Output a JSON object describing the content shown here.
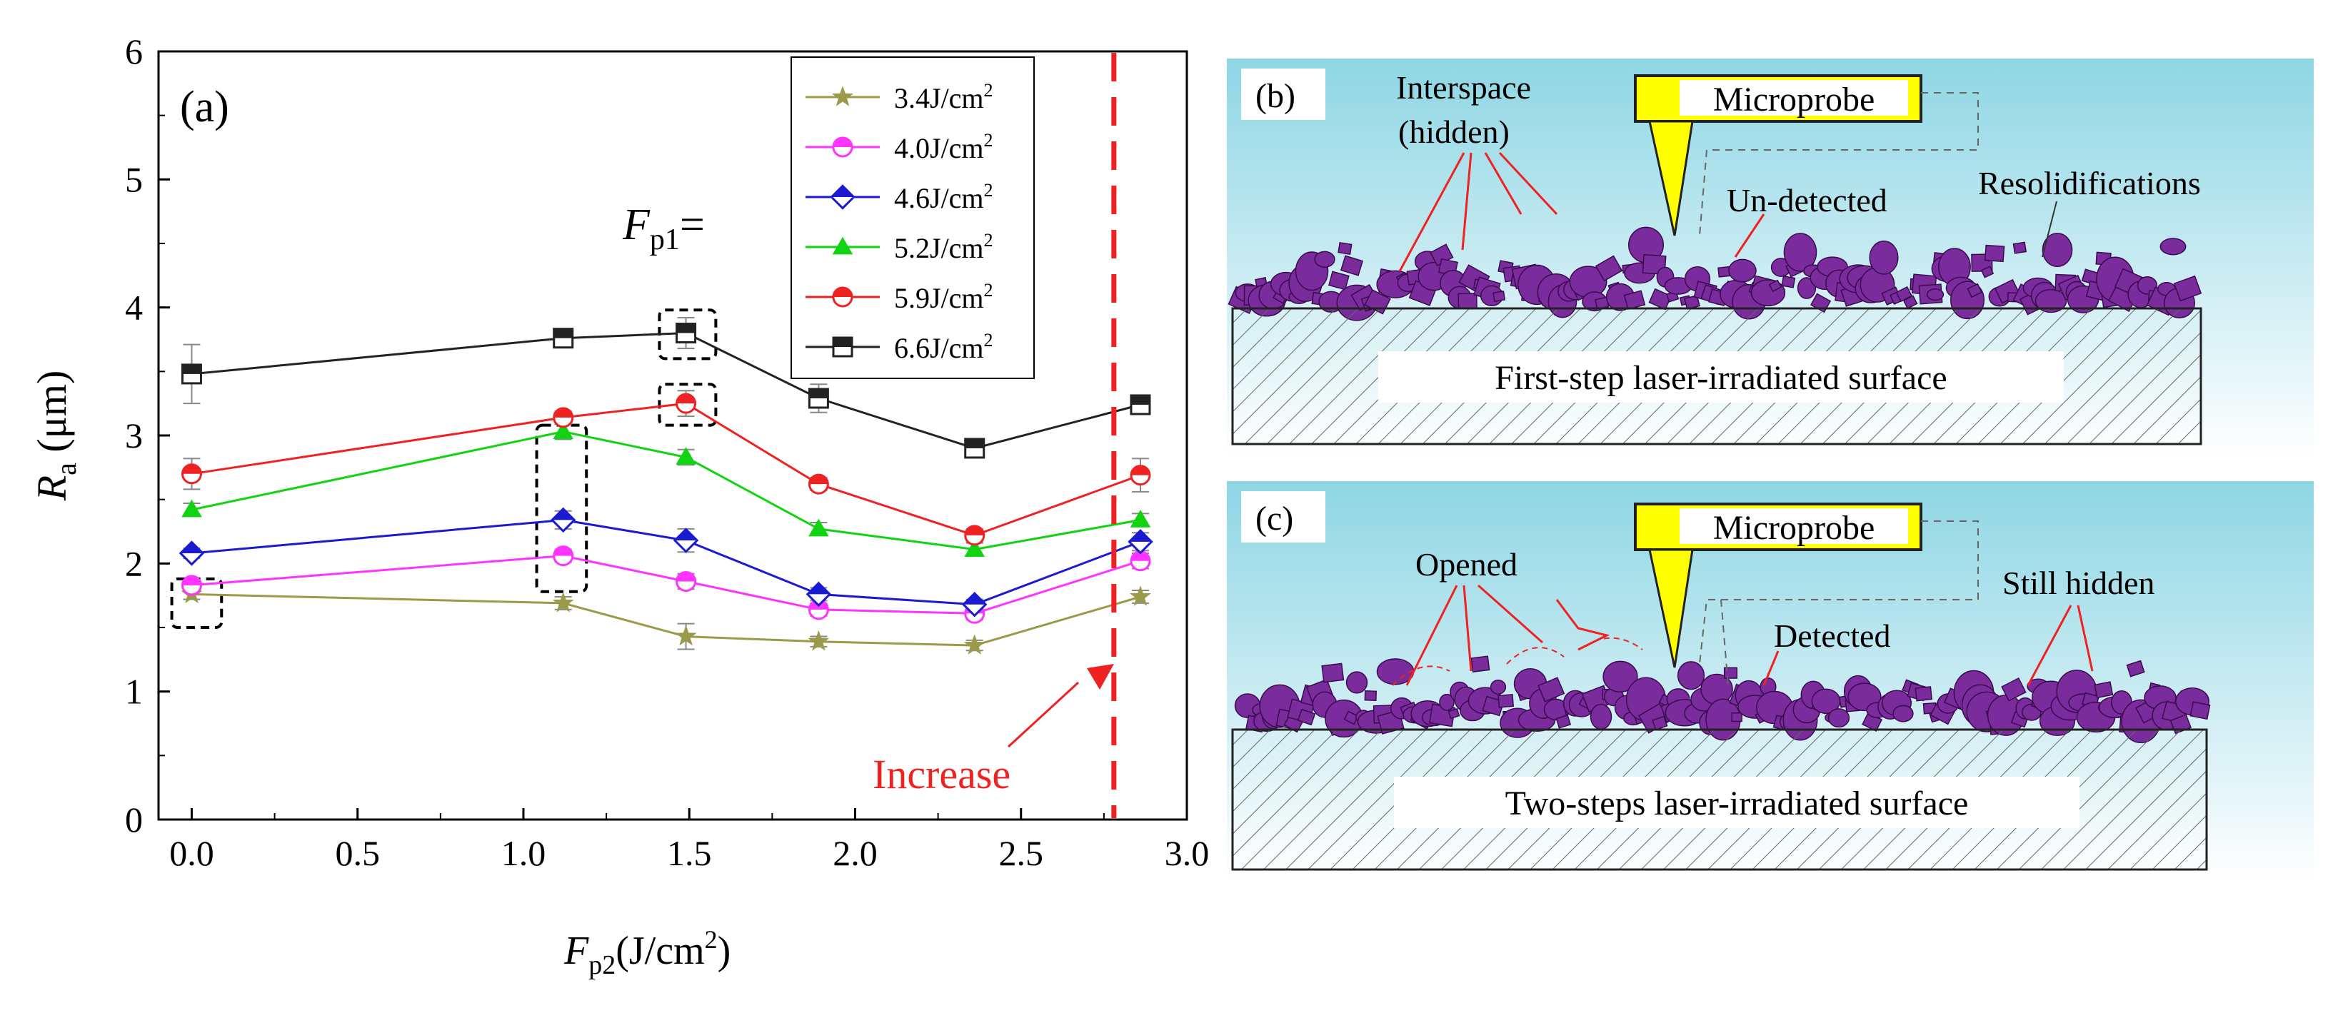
{
  "chart_data": {
    "type": "line",
    "panel_label": "(a)",
    "x": [
      0.0,
      1.12,
      1.49,
      1.89,
      2.36,
      2.86
    ],
    "xlim": [
      -0.1,
      3.0
    ],
    "ylim": [
      0,
      6
    ],
    "xticks": [
      "0.0",
      "0.5",
      "1.0",
      "1.5",
      "2.0",
      "2.5",
      "3.0"
    ],
    "yticks": [
      "0",
      "1",
      "2",
      "3",
      "4",
      "5",
      "6"
    ],
    "xlabel": {
      "main": "F",
      "sub": "p2",
      "unit": "(J/cm",
      "sup": "2",
      "close": ")"
    },
    "ylabel": {
      "main": "R",
      "sub": "a",
      "unit": " (μm)"
    },
    "legend_title": {
      "main": "F",
      "sub": "p1",
      "tail": "="
    },
    "legend_placement": "top-right",
    "grid": false,
    "series": [
      {
        "name": "3.4J/cm",
        "sup": "2",
        "color": "#9a9a4a",
        "marker": "star",
        "values": [
          1.76,
          1.69,
          1.43,
          1.39,
          1.36,
          1.74
        ],
        "errors": [
          0.04,
          0.05,
          0.1,
          0.04,
          0.04,
          0.05
        ]
      },
      {
        "name": "4.0J/cm",
        "sup": "2",
        "color": "#ff33ff",
        "marker": "circle-half",
        "values": [
          1.83,
          2.06,
          1.86,
          1.64,
          1.61,
          2.02
        ],
        "errors": [
          0.04,
          0.05,
          0.06,
          0.05,
          0.05,
          0.06
        ]
      },
      {
        "name": "4.6J/cm",
        "sup": "2",
        "color": "#1a1ad0",
        "marker": "diamond-half",
        "values": [
          2.08,
          2.34,
          2.18,
          1.76,
          1.68,
          2.17
        ],
        "errors": [
          0.04,
          0.07,
          0.09,
          0.05,
          0.04,
          0.07
        ]
      },
      {
        "name": "5.2J/cm",
        "sup": "2",
        "color": "#12d312",
        "marker": "triangle",
        "values": [
          2.42,
          3.03,
          2.83,
          2.27,
          2.11,
          2.34
        ],
        "errors": [
          0.05,
          0.06,
          0.06,
          0.05,
          0.05,
          0.05
        ]
      },
      {
        "name": "5.9J/cm",
        "sup": "2",
        "color": "#ee2222",
        "marker": "circle-half",
        "values": [
          2.7,
          3.14,
          3.25,
          2.62,
          2.22,
          2.69
        ],
        "errors": [
          0.12,
          0.05,
          0.1,
          0.05,
          0.05,
          0.13
        ]
      },
      {
        "name": "6.6J/cm",
        "sup": "2",
        "color": "#222222",
        "marker": "square-half",
        "values": [
          3.48,
          3.76,
          3.8,
          3.29,
          2.9,
          3.24
        ],
        "errors": [
          0.23,
          0.07,
          0.12,
          0.11,
          0.06,
          0.04
        ]
      }
    ],
    "highlight_boxes": [
      {
        "x": [
          -0.06,
          0.09
        ],
        "y": [
          1.5,
          1.88
        ]
      },
      {
        "x": [
          1.04,
          1.19
        ],
        "y": [
          1.78,
          3.08
        ]
      },
      {
        "x": [
          1.41,
          1.58
        ],
        "y": [
          3.08,
          3.4
        ]
      },
      {
        "x": [
          1.41,
          1.58
        ],
        "y": [
          3.6,
          3.98
        ]
      }
    ],
    "annotation": {
      "text": "Increase",
      "color": "#ee2222",
      "vline_x": 2.78
    }
  },
  "panel_b": {
    "label": "(b)",
    "probe_label": "Microprobe",
    "substrate_label": "First-step laser-irradiated surface",
    "annotations": [
      "Interspace",
      "(hidden)",
      "Un-detected",
      "Resolidifications"
    ]
  },
  "panel_c": {
    "label": "(c)",
    "probe_label": "Microprobe",
    "substrate_label": "Two-steps laser-irradiated surface",
    "annotations": [
      "Opened",
      "Detected",
      "Still hidden"
    ]
  },
  "colors": {
    "sky_top": "#ffffff",
    "sky_bottom": "#8ed6e4",
    "particles": "#7b2c9c",
    "probe": "#ffff00",
    "annotation_red": "#ee2222"
  }
}
